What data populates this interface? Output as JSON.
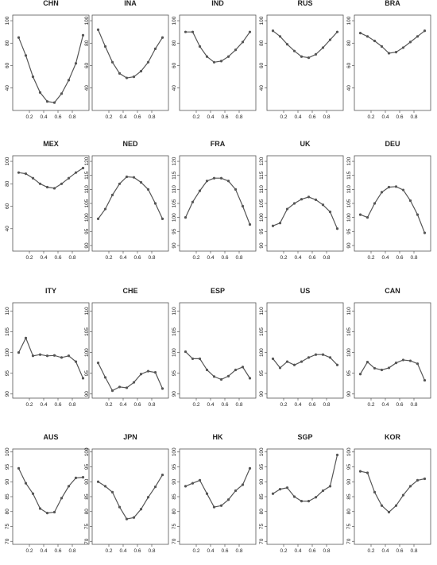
{
  "chart_data": [
    {
      "type": "line",
      "title": "CHN",
      "ylim": [
        20,
        105
      ],
      "yticks": [
        40,
        60,
        80,
        100
      ],
      "xticks": [
        "0.2",
        "0.4",
        "0.6",
        "0.8"
      ],
      "x": [
        0.05,
        0.15,
        0.25,
        0.35,
        0.45,
        0.55,
        0.65,
        0.75,
        0.85,
        0.95
      ],
      "values": [
        85,
        69,
        50,
        36,
        28,
        27,
        35,
        47,
        62,
        87
      ]
    },
    {
      "type": "line",
      "title": "INA",
      "ylim": [
        20,
        105
      ],
      "yticks": [
        40,
        60,
        80,
        100
      ],
      "xticks": [
        "0.2",
        "0.4",
        "0.6",
        "0.8"
      ],
      "x": [
        0.05,
        0.15,
        0.25,
        0.35,
        0.45,
        0.55,
        0.65,
        0.75,
        0.85,
        0.95
      ],
      "values": [
        92,
        77,
        63,
        53,
        49,
        50,
        55,
        63,
        75,
        85
      ]
    },
    {
      "type": "line",
      "title": "IND",
      "ylim": [
        20,
        105
      ],
      "yticks": [
        40,
        60,
        80,
        100
      ],
      "xticks": [
        "0.2",
        "0.4",
        "0.6",
        "0.8"
      ],
      "x": [
        0.05,
        0.15,
        0.25,
        0.35,
        0.45,
        0.55,
        0.65,
        0.75,
        0.85,
        0.95
      ],
      "values": [
        90,
        90,
        77,
        68,
        63,
        64,
        68,
        74,
        81,
        90
      ]
    },
    {
      "type": "line",
      "title": "RUS",
      "ylim": [
        20,
        105
      ],
      "yticks": [
        40,
        60,
        80,
        100
      ],
      "xticks": [
        "0.2",
        "0.4",
        "0.6",
        "0.8"
      ],
      "x": [
        0.05,
        0.15,
        0.25,
        0.35,
        0.45,
        0.55,
        0.65,
        0.75,
        0.85,
        0.95
      ],
      "values": [
        91,
        86,
        79,
        73,
        68,
        67,
        70,
        76,
        83,
        90
      ]
    },
    {
      "type": "line",
      "title": "BRA",
      "ylim": [
        20,
        105
      ],
      "yticks": [
        40,
        60,
        80,
        100
      ],
      "xticks": [
        "0.2",
        "0.4",
        "0.6",
        "0.8"
      ],
      "x": [
        0.05,
        0.15,
        0.25,
        0.35,
        0.45,
        0.55,
        0.65,
        0.75,
        0.85,
        0.95
      ],
      "values": [
        89,
        86,
        82,
        77,
        71,
        72,
        76,
        81,
        86,
        91
      ]
    },
    {
      "type": "line",
      "title": "MEX",
      "ylim": [
        20,
        105
      ],
      "yticks": [
        40,
        60,
        80,
        100
      ],
      "xticks": [
        "0.2",
        "0.4",
        "0.6",
        "0.8"
      ],
      "x": [
        0.05,
        0.15,
        0.25,
        0.35,
        0.45,
        0.55,
        0.65,
        0.75,
        0.85,
        0.95
      ],
      "values": [
        90,
        89,
        85,
        80,
        77,
        76,
        80,
        85,
        90,
        94
      ]
    },
    {
      "type": "line",
      "title": "NED",
      "ylim": [
        88,
        122
      ],
      "yticks": [
        90,
        95,
        100,
        105,
        110,
        115,
        120
      ],
      "xticks": [
        "0.2",
        "0.4",
        "0.6",
        "0.8"
      ],
      "x": [
        0.05,
        0.15,
        0.25,
        0.35,
        0.45,
        0.55,
        0.65,
        0.75,
        0.85,
        0.95
      ],
      "values": [
        99.5,
        103,
        108,
        112,
        114.5,
        114.3,
        112.5,
        110,
        105,
        99.5
      ]
    },
    {
      "type": "line",
      "title": "FRA",
      "ylim": [
        88,
        122
      ],
      "yticks": [
        90,
        95,
        100,
        105,
        110,
        115,
        120
      ],
      "xticks": [
        "0.2",
        "0.4",
        "0.6",
        "0.8"
      ],
      "x": [
        0.05,
        0.15,
        0.25,
        0.35,
        0.45,
        0.55,
        0.65,
        0.75,
        0.85,
        0.95
      ],
      "values": [
        100,
        105.5,
        109.5,
        113,
        114,
        114,
        113,
        110,
        104,
        97.5
      ]
    },
    {
      "type": "line",
      "title": "UK",
      "ylim": [
        88,
        122
      ],
      "yticks": [
        90,
        95,
        100,
        105,
        110,
        115,
        120
      ],
      "xticks": [
        "0.2",
        "0.4",
        "0.6",
        "0.8"
      ],
      "x": [
        0.05,
        0.15,
        0.25,
        0.35,
        0.45,
        0.55,
        0.65,
        0.75,
        0.85,
        0.95
      ],
      "values": [
        97,
        98,
        103,
        105,
        106.5,
        107.3,
        106.3,
        104.5,
        102,
        96
      ]
    },
    {
      "type": "line",
      "title": "DEU",
      "ylim": [
        88,
        122
      ],
      "yticks": [
        90,
        95,
        100,
        105,
        110,
        115,
        120
      ],
      "xticks": [
        "0.2",
        "0.4",
        "0.6",
        "0.8"
      ],
      "x": [
        0.05,
        0.15,
        0.25,
        0.35,
        0.45,
        0.55,
        0.65,
        0.75,
        0.85,
        0.95
      ],
      "values": [
        101,
        100,
        105,
        109,
        110.8,
        111,
        109.8,
        106,
        101,
        94.5
      ]
    },
    {
      "type": "line",
      "title": "ITY",
      "ylim": [
        89,
        112
      ],
      "yticks": [
        90,
        95,
        100,
        105,
        110
      ],
      "xticks": [
        "0.2",
        "0.4",
        "0.6",
        "0.8"
      ],
      "x": [
        0.05,
        0.15,
        0.25,
        0.35,
        0.45,
        0.55,
        0.65,
        0.75,
        0.85,
        0.95
      ],
      "values": [
        100,
        103.5,
        99.2,
        99.5,
        99.2,
        99.3,
        98.8,
        99.2,
        97.8,
        93.8
      ]
    },
    {
      "type": "line",
      "title": "CHE",
      "ylim": [
        89,
        112
      ],
      "yticks": [
        90,
        95,
        100,
        105,
        110
      ],
      "xticks": [
        "0.2",
        "0.4",
        "0.6",
        "0.8"
      ],
      "x": [
        0.05,
        0.15,
        0.25,
        0.35,
        0.45,
        0.55,
        0.65,
        0.75,
        0.85,
        0.95
      ],
      "values": [
        97.5,
        94,
        90.8,
        91.7,
        91.5,
        92.8,
        94.8,
        95.5,
        95.2,
        91.3
      ]
    },
    {
      "type": "line",
      "title": "ESP",
      "ylim": [
        89,
        112
      ],
      "yticks": [
        90,
        95,
        100,
        105,
        110
      ],
      "xticks": [
        "0.2",
        "0.4",
        "0.6",
        "0.8"
      ],
      "x": [
        0.05,
        0.15,
        0.25,
        0.35,
        0.45,
        0.55,
        0.65,
        0.75,
        0.85,
        0.95
      ],
      "values": [
        100.2,
        98.5,
        98.5,
        95.8,
        94.2,
        93.5,
        94.3,
        95.8,
        96.5,
        93.8
      ]
    },
    {
      "type": "line",
      "title": "US",
      "ylim": [
        89,
        112
      ],
      "yticks": [
        90,
        95,
        100,
        105,
        110
      ],
      "xticks": [
        "0.2",
        "0.4",
        "0.6",
        "0.8"
      ],
      "x": [
        0.05,
        0.15,
        0.25,
        0.35,
        0.45,
        0.55,
        0.65,
        0.75,
        0.85,
        0.95
      ],
      "values": [
        98.5,
        96.3,
        97.8,
        97,
        97.8,
        98.8,
        99.5,
        99.5,
        98.8,
        97
      ]
    },
    {
      "type": "line",
      "title": "CAN",
      "ylim": [
        89,
        112
      ],
      "yticks": [
        90,
        95,
        100,
        105,
        110
      ],
      "xticks": [
        "0.2",
        "0.4",
        "0.6",
        "0.8"
      ],
      "x": [
        0.05,
        0.15,
        0.25,
        0.35,
        0.45,
        0.55,
        0.65,
        0.75,
        0.85,
        0.95
      ],
      "values": [
        94.8,
        97.7,
        96.2,
        95.8,
        96.3,
        97.5,
        98.2,
        98,
        97.3,
        93.3
      ]
    },
    {
      "type": "line",
      "title": "AUS",
      "ylim": [
        69,
        101
      ],
      "yticks": [
        70,
        75,
        80,
        85,
        90,
        95,
        100
      ],
      "xticks": [
        "0.2",
        "0.4",
        "0.6",
        "0.8"
      ],
      "x": [
        0.05,
        0.15,
        0.25,
        0.35,
        0.45,
        0.55,
        0.65,
        0.75,
        0.85,
        0.95
      ],
      "values": [
        94.5,
        89.5,
        86,
        81,
        79.5,
        79.8,
        84.5,
        88.5,
        91.3,
        91.5
      ]
    },
    {
      "type": "line",
      "title": "JPN",
      "ylim": [
        69,
        101
      ],
      "yticks": [
        70,
        75,
        80,
        85,
        90,
        95,
        100
      ],
      "xticks": [
        "0.2",
        "0.4",
        "0.6",
        "0.8"
      ],
      "x": [
        0.05,
        0.15,
        0.25,
        0.35,
        0.45,
        0.55,
        0.65,
        0.75,
        0.85,
        0.95
      ],
      "values": [
        90,
        88.5,
        86.5,
        81.5,
        77.5,
        78,
        80.8,
        84.8,
        88.3,
        92.3
      ]
    },
    {
      "type": "line",
      "title": "HK",
      "ylim": [
        69,
        101
      ],
      "yticks": [
        70,
        75,
        80,
        85,
        90,
        95,
        100
      ],
      "xticks": [
        "0.2",
        "0.4",
        "0.6",
        "0.8"
      ],
      "x": [
        0.05,
        0.15,
        0.25,
        0.35,
        0.45,
        0.55,
        0.65,
        0.75,
        0.85,
        0.95
      ],
      "values": [
        88.5,
        89.5,
        90.5,
        86,
        81.5,
        82,
        84,
        87,
        89,
        94.5
      ]
    },
    {
      "type": "line",
      "title": "SGP",
      "ylim": [
        69,
        101
      ],
      "yticks": [
        70,
        75,
        80,
        85,
        90,
        95,
        100
      ],
      "xticks": [
        "0.2",
        "0.4",
        "0.6",
        "0.8"
      ],
      "x": [
        0.05,
        0.15,
        0.25,
        0.35,
        0.45,
        0.55,
        0.65,
        0.75,
        0.85,
        0.95
      ],
      "values": [
        86,
        87.5,
        88,
        85,
        83.5,
        83.5,
        84.8,
        87,
        88.5,
        99
      ]
    },
    {
      "type": "line",
      "title": "KOR",
      "ylim": [
        69,
        101
      ],
      "yticks": [
        70,
        75,
        80,
        85,
        90,
        95,
        100
      ],
      "xticks": [
        "0.2",
        "0.4",
        "0.6",
        "0.8"
      ],
      "x": [
        0.05,
        0.15,
        0.25,
        0.35,
        0.45,
        0.55,
        0.65,
        0.75,
        0.85,
        0.95
      ],
      "values": [
        93.5,
        93,
        86.5,
        82,
        79.8,
        82,
        85.5,
        88.5,
        90.5,
        91
      ]
    }
  ]
}
